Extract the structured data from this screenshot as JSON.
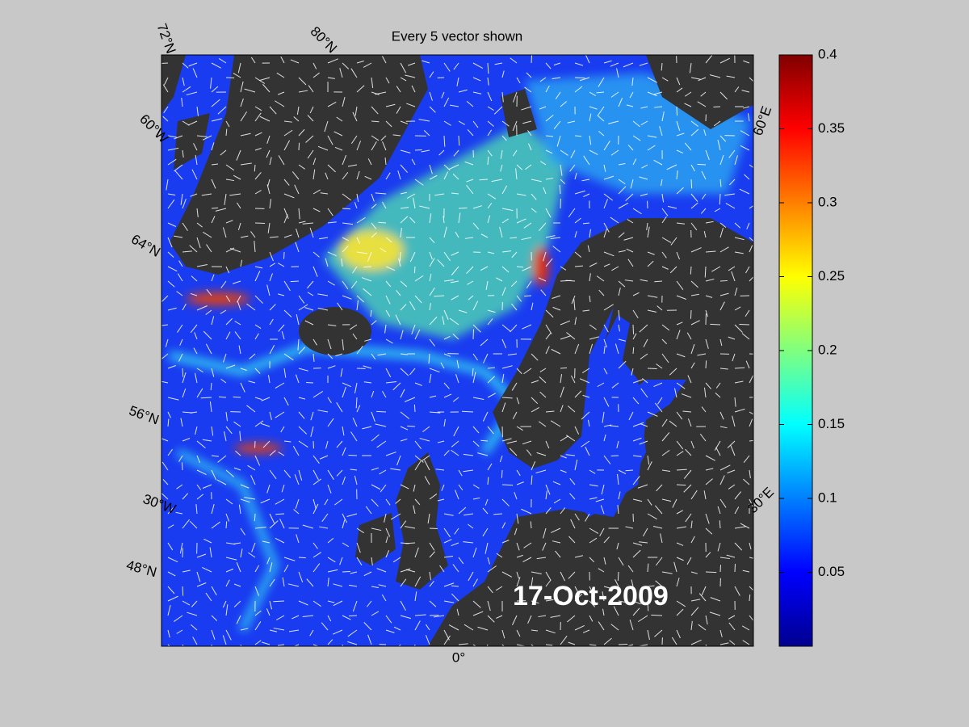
{
  "map": {
    "title": "Every 5 vector shown",
    "date_label": "17-Oct-2009",
    "grid_labels": [
      "72°N",
      "80°N",
      "60°W",
      "64°N",
      "56°N",
      "30°W",
      "48°N",
      "0°",
      "30°E",
      "60°E"
    ]
  },
  "colorbar": {
    "lim": [
      0,
      0.4
    ],
    "ticks": [
      0.05,
      0.1,
      0.15,
      0.2,
      0.25,
      0.3,
      0.35,
      0.4
    ]
  }
}
